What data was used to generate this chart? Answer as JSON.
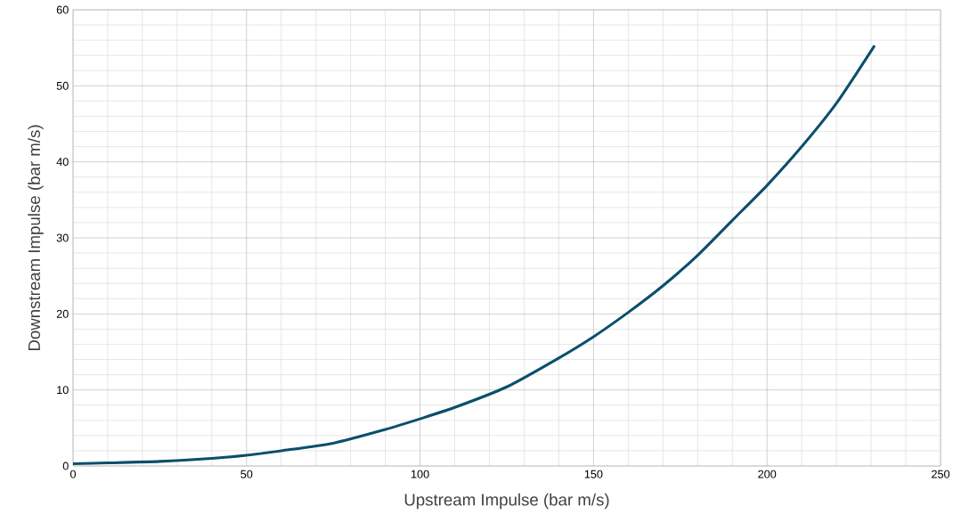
{
  "chart_data": {
    "type": "line",
    "xlabel": "Upstream Impulse (bar m/s)",
    "ylabel": "Downstream Impulse (bar m/s)",
    "x": [
      0,
      10,
      25,
      40,
      50,
      60,
      75,
      90,
      100,
      110,
      125,
      140,
      150,
      160,
      170,
      180,
      190,
      200,
      210,
      220,
      231
    ],
    "series": [
      {
        "color": "#0b4f6c",
        "values": [
          0.3,
          0.4,
          0.6,
          1.0,
          1.4,
          2.0,
          3.0,
          4.8,
          6.2,
          7.7,
          10.4,
          14.2,
          17.0,
          20.2,
          23.7,
          27.7,
          32.3,
          36.9,
          42.0,
          47.7,
          55.3
        ]
      }
    ],
    "xlim": [
      0,
      250
    ],
    "ylim": [
      0,
      60
    ],
    "xticks": [
      0,
      50,
      100,
      150,
      200,
      250
    ],
    "yticks": [
      0,
      10,
      20,
      30,
      40,
      50,
      60
    ],
    "grid": true,
    "marker": "none",
    "line_style": "solid"
  }
}
